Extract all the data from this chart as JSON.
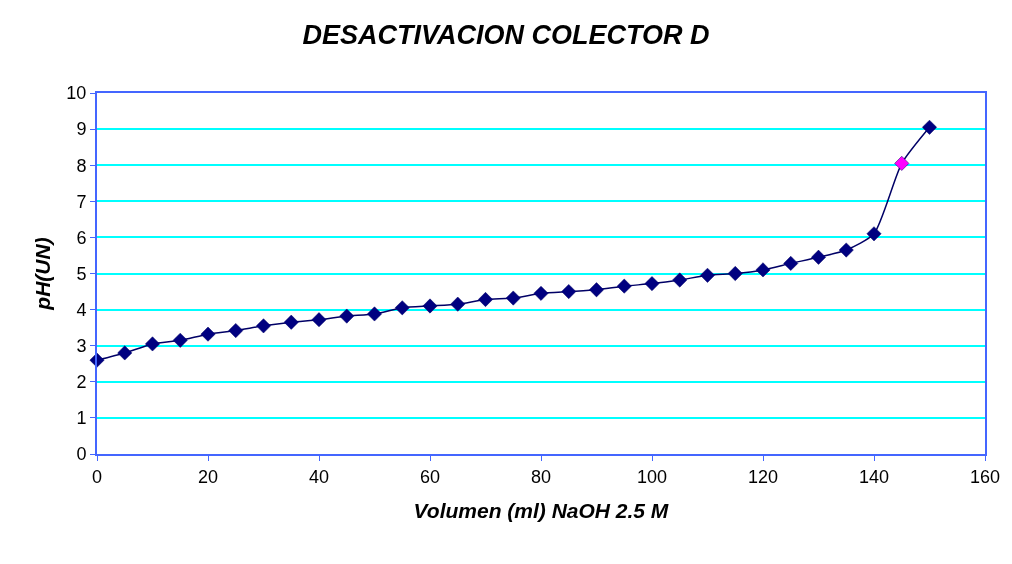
{
  "chart_data": {
    "type": "line",
    "title": "DESACTIVACION COLECTOR D",
    "xlabel": "Volumen (ml) NaOH 2.5 M",
    "ylabel": "pH(UN)",
    "x": [
      0,
      5,
      10,
      15,
      20,
      25,
      30,
      35,
      40,
      45,
      50,
      55,
      60,
      65,
      70,
      75,
      80,
      85,
      90,
      95,
      100,
      105,
      110,
      115,
      120,
      125,
      130,
      135,
      140,
      145,
      150
    ],
    "series": [
      {
        "color": "#000066",
        "values": [
          2.6,
          2.8,
          3.05,
          3.15,
          3.32,
          3.42,
          3.55,
          3.65,
          3.72,
          3.82,
          3.88,
          4.05,
          4.1,
          4.15,
          4.28,
          4.32,
          4.45,
          4.5,
          4.55,
          4.65,
          4.72,
          4.82,
          4.95,
          5.0,
          5.1,
          5.28,
          5.45,
          5.65,
          6.1,
          8.05,
          9.05
        ],
        "colors": [
          "#000080",
          "#000080",
          "#000080",
          "#000080",
          "#000080",
          "#000080",
          "#000080",
          "#000080",
          "#000080",
          "#000080",
          "#000080",
          "#000080",
          "#000080",
          "#000080",
          "#000080",
          "#000080",
          "#000080",
          "#000080",
          "#000080",
          "#000080",
          "#000080",
          "#000080",
          "#000080",
          "#000080",
          "#000080",
          "#000080",
          "#000080",
          "#000080",
          "#000080",
          "#ff00ff",
          "#000080"
        ]
      }
    ],
    "xlim": [
      0,
      160
    ],
    "xticks": [
      0,
      20,
      40,
      60,
      80,
      100,
      120,
      140,
      160
    ],
    "ylim": [
      0,
      10
    ],
    "yticks": [
      0,
      1,
      2,
      3,
      4,
      5,
      6,
      7,
      8,
      9,
      10
    ],
    "grid": "y",
    "marker": "diamond",
    "line_style": "solid"
  }
}
